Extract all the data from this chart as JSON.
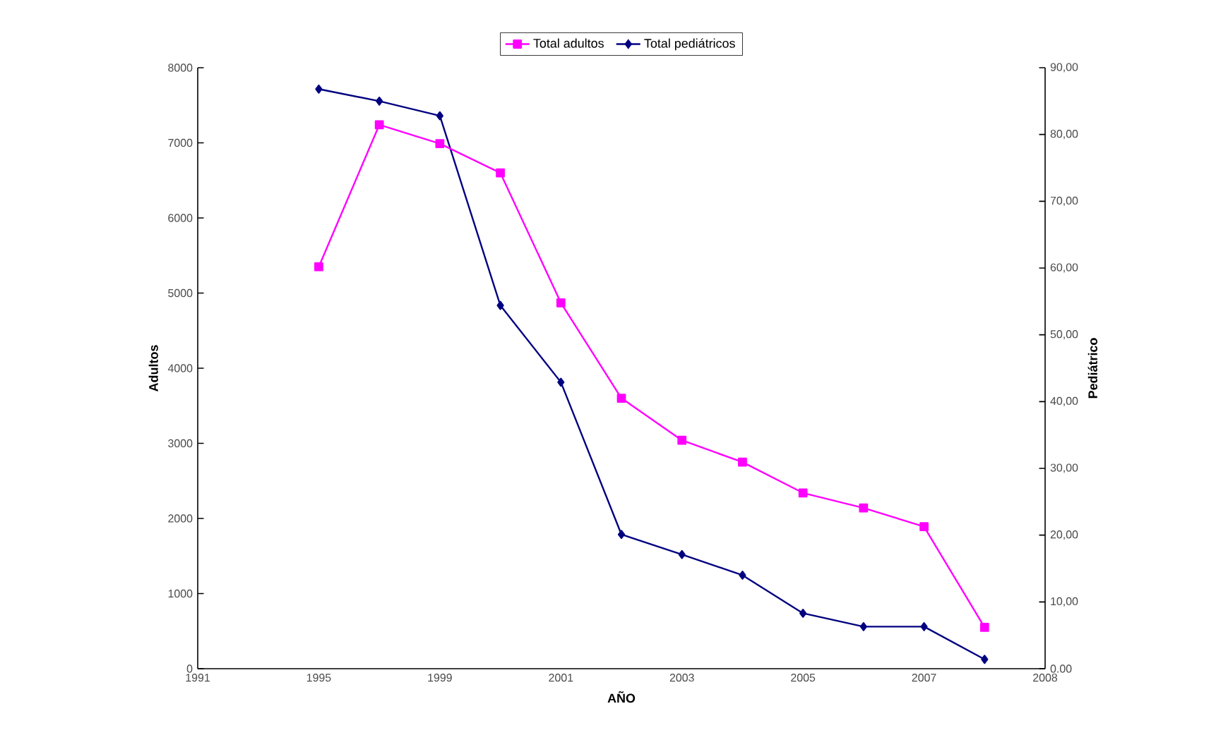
{
  "chart_data": {
    "type": "line",
    "xlabel": "AÑO",
    "ylabel": "Adultos",
    "y2label": "Pediátrico",
    "categories": [
      "1991",
      null,
      "1995",
      null,
      "1999",
      null,
      "2001",
      null,
      "2003",
      null,
      "2005",
      null,
      "2007",
      null,
      "2008"
    ],
    "ylim": [
      0,
      8000
    ],
    "yticks": [
      0,
      1000,
      2000,
      3000,
      4000,
      5000,
      6000,
      7000,
      8000
    ],
    "y2lim": [
      0,
      90
    ],
    "y2ticks": [
      {
        "value": 0,
        "label": "0.00"
      },
      {
        "value": 10,
        "label": "10,00"
      },
      {
        "value": 20,
        "label": "20,00"
      },
      {
        "value": 30,
        "label": "30,00"
      },
      {
        "value": 40,
        "label": "40,00"
      },
      {
        "value": 50,
        "label": "50,00"
      },
      {
        "value": 60,
        "label": "60,00"
      },
      {
        "value": 70,
        "label": "70,00"
      },
      {
        "value": 80,
        "label": "80,00"
      },
      {
        "value": 90,
        "label": "90,00"
      }
    ],
    "series": [
      {
        "name": "Total adultos",
        "color": "#ff00ff",
        "marker": "square",
        "values": [
          null,
          null,
          5350,
          7240,
          6990,
          6600,
          4870,
          3600,
          3040,
          2750,
          2340,
          2140,
          1890,
          550,
          null
        ]
      },
      {
        "name": "Total pediátricos",
        "color": "#000080",
        "marker": "diamond",
        "axis": "y2",
        "values": [
          null,
          null,
          86.8,
          85.0,
          82.8,
          54.4,
          42.9,
          20.1,
          17.1,
          14.0,
          8.3,
          6.3,
          6.3,
          1.4,
          null
        ]
      }
    ],
    "legend": "top",
    "grid": false
  }
}
